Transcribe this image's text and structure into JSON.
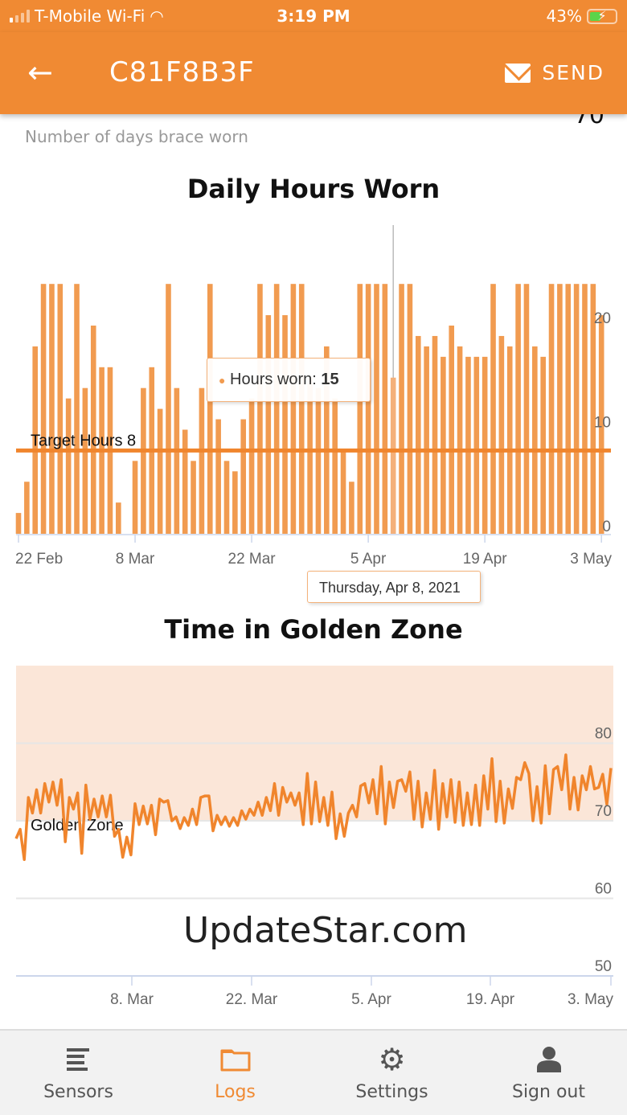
{
  "status_bar": {
    "carrier": "T-Mobile Wi-Fi",
    "time": "3:19 PM",
    "battery": "43%",
    "battery_level": 0.43,
    "signal_bars": 1
  },
  "app_bar": {
    "title": "C81F8B3F",
    "send_label": "SEND",
    "back_icon": "arrow-left-icon",
    "send_icon": "mail-icon"
  },
  "summary": {
    "value": "70",
    "subtitle": "Number of days brace worn"
  },
  "colors": {
    "brand": "#F08A33",
    "bar": "#F19B50",
    "golden_zone": "#FBE6D8",
    "line": "#F0852D"
  },
  "chart_data": [
    {
      "type": "bar",
      "title": "Daily Hours Worn",
      "xlim": [
        "2021-02-22",
        "2021-05-03"
      ],
      "x_tick_labels": [
        "22 Feb",
        "8 Mar",
        "22 Mar",
        "5 Apr",
        "19 Apr",
        "3 May"
      ],
      "y_tick_labels": [
        "0",
        "10",
        "20"
      ],
      "ylim": [
        0,
        24
      ],
      "values": [
        2,
        5,
        18,
        24,
        24,
        24,
        13,
        24,
        14,
        20,
        16,
        16,
        3,
        0,
        7,
        14,
        16,
        12,
        24,
        14,
        10,
        7,
        14,
        24,
        11,
        7,
        6,
        11,
        13,
        24,
        21,
        24,
        21,
        24,
        24,
        15,
        14,
        18,
        13,
        8,
        5,
        24,
        24,
        24,
        24,
        15,
        24,
        24,
        19,
        18,
        19,
        17,
        20,
        18,
        17,
        17,
        17,
        24,
        19,
        18,
        24,
        24,
        18,
        17,
        24,
        24,
        24,
        24,
        24,
        24,
        21
      ],
      "plot_line": {
        "label": "Target Hours 8",
        "value": 8
      },
      "tooltip": {
        "series": "Hours worn",
        "value": "15",
        "date": "Thursday, Apr 8, 2021",
        "highlighted_index": 45
      }
    },
    {
      "type": "line",
      "title": "Time in Golden Zone",
      "xlim": [
        "2021-02-22",
        "2021-05-03"
      ],
      "x_tick_labels": [
        "8. Mar",
        "22. Mar",
        "5. Apr",
        "19. Apr",
        "3. May"
      ],
      "y_tick_labels": [
        "50",
        "60",
        "70",
        "80"
      ],
      "ylim": [
        50,
        90
      ],
      "plot_band": {
        "label": "Golden Zone",
        "from": 70,
        "to": 90
      },
      "values": [
        67.7,
        68.9,
        65,
        73,
        71,
        74,
        71,
        74.8,
        72.4,
        75,
        72,
        75.3,
        67.3,
        73,
        71.5,
        73.6,
        65.8,
        74.6,
        70.2,
        72.8,
        70.5,
        73.2,
        70.5,
        73.3,
        68,
        68.9,
        65.3,
        67.9,
        65.6,
        72.2,
        69.5,
        71.9,
        69.6,
        72,
        68.2,
        72.8,
        72.4,
        72.6,
        70,
        70.5,
        69,
        70.4,
        69.4,
        71.5,
        69.5,
        73,
        73.2,
        73.2,
        68.7,
        70.7,
        69.5,
        70.5,
        69.3,
        70.4,
        69.4,
        71.3,
        70.2,
        71.5,
        70.7,
        72.4,
        70.7,
        73,
        71.3,
        74.8,
        70.7,
        74.3,
        72.4,
        73.6,
        72,
        73.6,
        69.5,
        76.1,
        69.6,
        75,
        69.9,
        73,
        69.4,
        73.7,
        67.7,
        70.9,
        68,
        71,
        72,
        70.5,
        74.5,
        74.8,
        72.3,
        75.3,
        70.9,
        77,
        69.6,
        75,
        71.7,
        75.1,
        75.3,
        73.8,
        76.3,
        70.2,
        75.1,
        69.2,
        73.6,
        70.2,
        76.5,
        68.9,
        74.8,
        70.5,
        75.3,
        69.8,
        75,
        69.4,
        73.6,
        69.5,
        74.6,
        69.4,
        75.8,
        71.5,
        78,
        69.9,
        75.1,
        69.7,
        74.1,
        71.6,
        75.6,
        75.3,
        77.5,
        76.1,
        70,
        74.4,
        69.7,
        77.1,
        70.9,
        76.6,
        77,
        74,
        78.5,
        71.5,
        75.6,
        71.4,
        75.8,
        74,
        77,
        74.1,
        74.3,
        76,
        72.1,
        76.8
      ]
    }
  ],
  "watermark": "UpdateStar.com",
  "bottom_nav": {
    "items": [
      {
        "label": "Sensors",
        "icon": "list-icon",
        "active": false
      },
      {
        "label": "Logs",
        "icon": "folder-icon",
        "active": true
      },
      {
        "label": "Settings",
        "icon": "gear-icon",
        "active": false
      },
      {
        "label": "Sign out",
        "icon": "person-icon",
        "active": false
      }
    ]
  }
}
